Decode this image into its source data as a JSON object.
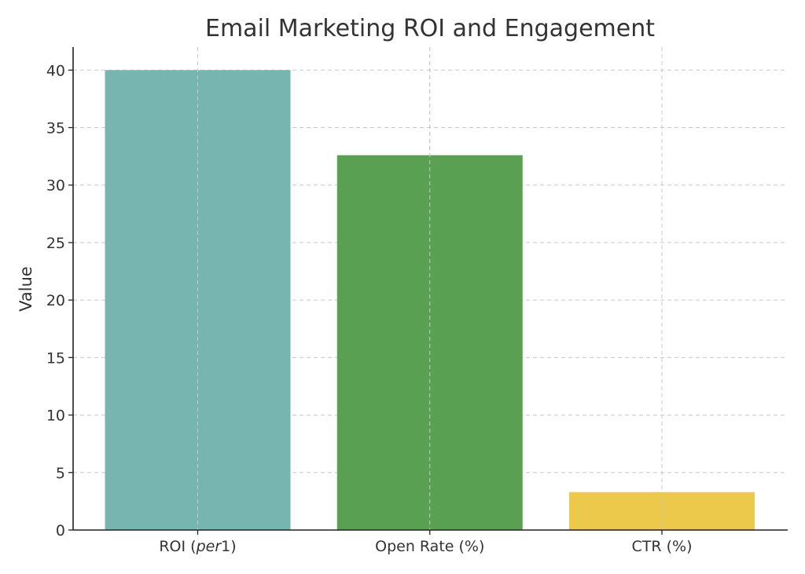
{
  "chart_data": {
    "type": "bar",
    "title": "Email Marketing ROI and Engagement",
    "xlabel": "",
    "ylabel": "Value",
    "categories": [
      "ROI (per1)",
      "Open Rate (%)",
      "CTR (%)"
    ],
    "category_labels": [
      {
        "parts": [
          {
            "text": "ROI (",
            "italic": false
          },
          {
            "text": "per",
            "italic": true
          },
          {
            "text": "1)",
            "italic": false
          }
        ]
      },
      {
        "parts": [
          {
            "text": "Open Rate (%)",
            "italic": false
          }
        ]
      },
      {
        "parts": [
          {
            "text": "CTR (%)",
            "italic": false
          }
        ]
      }
    ],
    "values": [
      40,
      32.6,
      3.3
    ],
    "colors": [
      "#76b5b0",
      "#5aa052",
      "#ecc94b"
    ],
    "ylim": [
      0,
      42
    ],
    "yticks": [
      0,
      5,
      10,
      15,
      20,
      25,
      30,
      35,
      40
    ],
    "grid": true,
    "legend": "none"
  }
}
